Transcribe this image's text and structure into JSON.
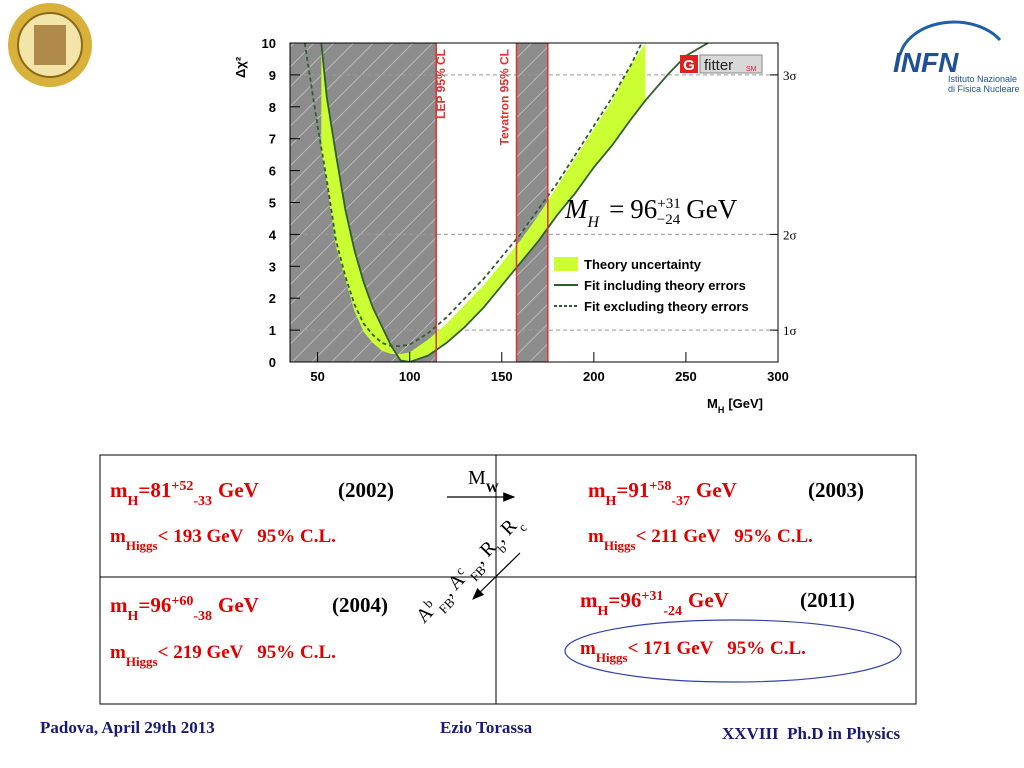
{
  "chart_data": {
    "type": "line",
    "y_label": "Δχ²",
    "x_label": {
      "symbol": "M",
      "subscript": "H",
      "unit": "[GeV]"
    },
    "xlim": [
      35,
      300
    ],
    "ylim": [
      0,
      10
    ],
    "xticks": [
      50,
      100,
      150,
      200,
      250,
      300
    ],
    "yticks": [
      0,
      1,
      2,
      3,
      4,
      5,
      6,
      7,
      8,
      9,
      10
    ],
    "y2ticks": [
      {
        "value": 1,
        "label": "1σ"
      },
      {
        "value": 4,
        "label": "2σ"
      },
      {
        "value": 9,
        "label": "3σ"
      }
    ],
    "grid": true,
    "regions": [
      {
        "label": "LEP 95% CL",
        "xmax": 114.4,
        "color": "#e03030"
      },
      {
        "label": "Tevatron 95% CL",
        "xmin": 158,
        "xmax": 175,
        "color": "#e03030"
      }
    ],
    "series": [
      {
        "name": "Theory uncertainty",
        "color": "#ccff33",
        "style": "band",
        "x": [
          52,
          55,
          60,
          65,
          70,
          75,
          80,
          85,
          90,
          95,
          100,
          110,
          120,
          130,
          140,
          150,
          160,
          170,
          180,
          190,
          200,
          210,
          220,
          228
        ],
        "values": [
          10,
          8.3,
          6.5,
          4.8,
          3.5,
          2.5,
          1.7,
          1.1,
          0.5,
          0.05,
          0,
          0.2,
          0.6,
          1.1,
          1.7,
          2.4,
          3.1,
          3.8,
          4.6,
          5.3,
          6.1,
          6.8,
          7.6,
          8.2
        ],
        "upper": [
          6.6,
          5.6,
          3.6,
          2.6,
          1.6,
          0.95,
          0.6,
          0.35,
          0.25,
          0.25,
          0.3,
          0.7,
          1.2,
          1.8,
          2.4,
          3.1,
          3.8,
          4.6,
          5.5,
          6.4,
          7.3,
          8.2,
          9.3,
          10
        ]
      },
      {
        "name": "Fit including theory errors",
        "color": "#2f5e2f",
        "style": "solid",
        "x": [
          52,
          55,
          60,
          65,
          70,
          75,
          80,
          85,
          90,
          95,
          100,
          110,
          120,
          130,
          140,
          150,
          160,
          170,
          180,
          190,
          200,
          210,
          220,
          228,
          240,
          250,
          262
        ],
        "values": [
          10,
          8.3,
          6.5,
          4.8,
          3.5,
          2.5,
          1.7,
          1.1,
          0.5,
          0.05,
          0,
          0.2,
          0.6,
          1.1,
          1.7,
          2.4,
          3.1,
          3.8,
          4.6,
          5.3,
          6.1,
          6.8,
          7.6,
          8.2,
          9.0,
          9.6,
          10
        ]
      },
      {
        "name": "Fit excluding theory errors",
        "color": "#2f5e2f",
        "style": "dashed",
        "x": [
          43,
          50,
          55,
          60,
          65,
          70,
          75,
          80,
          85,
          90,
          95,
          100,
          110,
          120,
          130,
          140,
          150,
          160,
          170,
          180,
          190,
          200,
          210,
          220,
          226
        ],
        "values": [
          10,
          7.4,
          5.7,
          3.8,
          2.7,
          1.8,
          1.2,
          0.85,
          0.6,
          0.5,
          0.5,
          0.55,
          0.9,
          1.4,
          2.0,
          2.6,
          3.3,
          4.0,
          4.8,
          5.6,
          6.5,
          7.4,
          8.3,
          9.3,
          10
        ]
      }
    ],
    "logo": {
      "letter": "G",
      "name": "fitter",
      "tag": "SM"
    },
    "result": {
      "symbol": "M",
      "subscript": "H",
      "equals": "=",
      "value": 96,
      "plus": "+31",
      "minus": "−24",
      "unit": "GeV"
    }
  },
  "header": {
    "infn": {
      "name": "INFN",
      "line1": "Istituto Nazionale",
      "line2": "di Fisica Nucleare"
    }
  },
  "table": {
    "cells": [
      {
        "mass": {
          "symbol": "m",
          "subscript": "H",
          "text": "=81",
          "sup": "+52",
          "sub": "-33",
          "unit": "GeV"
        },
        "year": "(2002)",
        "limit": {
          "symbol": "m",
          "subscript": "Higgs",
          "text": "< 193 GeV   95% C.L."
        }
      },
      {
        "mass": {
          "symbol": "m",
          "subscript": "H",
          "text": "=91",
          "sup": "+58",
          "sub": "-37",
          "unit": "GeV"
        },
        "year": "(2003)",
        "limit": {
          "symbol": "m",
          "subscript": "Higgs",
          "text": "< 211 GeV   95% C.L."
        }
      },
      {
        "mass": {
          "symbol": "m",
          "subscript": "H",
          "text": "=96",
          "sup": "+60",
          "sub": "-38",
          "unit": "GeV"
        },
        "year": "(2004)",
        "limit": {
          "symbol": "m",
          "subscript": "Higgs",
          "text": "< 219 GeV   95% C.L."
        }
      },
      {
        "mass": {
          "symbol": "m",
          "subscript": "H",
          "text": "=96",
          "sup": "+31",
          "sub": "-24",
          "unit": "GeV"
        },
        "year": "(2011)",
        "limit": {
          "symbol": "m",
          "subscript": "Higgs",
          "text": "< 171 GeV   95% C.L."
        }
      }
    ],
    "arrows": {
      "top": {
        "symbol": "M",
        "subscript": "W"
      },
      "diagonal": [
        "A",
        "b",
        "FB",
        ", A",
        "c",
        "FB",
        ", R",
        "b",
        ", R",
        "c"
      ]
    }
  },
  "footer": {
    "left": "Padova, April 29th 2013",
    "center": "Ezio Torassa",
    "right": "XXVIII  Ph.D in Physics"
  }
}
